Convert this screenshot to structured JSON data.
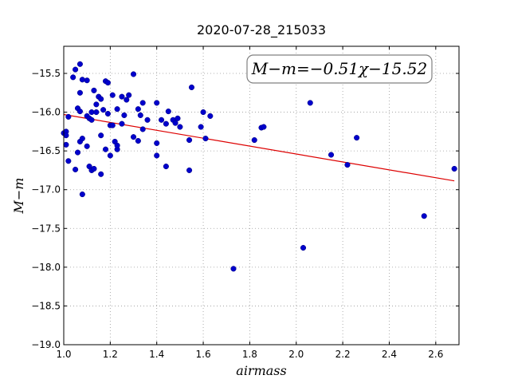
{
  "chart_data": {
    "type": "scatter",
    "title": "2020-07-28_215033",
    "xlabel": "airmass",
    "ylabel": "M−m",
    "annotation": "M−m=−0.51χ−15.52",
    "xlim": [
      1.0,
      2.7
    ],
    "ylim": [
      -19.0,
      -15.15
    ],
    "xticks": [
      1.0,
      1.2,
      1.4,
      1.6,
      1.8,
      2.0,
      2.2,
      2.4,
      2.6
    ],
    "xtick_labels": [
      "1.0",
      "1.2",
      "1.4",
      "1.6",
      "1.8",
      "2.0",
      "2.2",
      "2.4",
      "2.6"
    ],
    "yticks": [
      -15.5,
      -16.0,
      -16.5,
      -17.0,
      -17.5,
      -18.0,
      -18.5,
      -19.0
    ],
    "ytick_labels": [
      "−15.5",
      "−16.0",
      "−16.5",
      "−17.0",
      "−17.5",
      "−18.0",
      "−18.5",
      "−19.0"
    ],
    "grid": true,
    "point_color": "#0000cc",
    "fit_line": {
      "slope": -0.51,
      "intercept": -15.52,
      "x_range": [
        1.0,
        2.68
      ],
      "color": "#dd0000"
    },
    "points": [
      [
        1.0,
        -16.27
      ],
      [
        1.01,
        -16.25
      ],
      [
        1.01,
        -16.3
      ],
      [
        1.01,
        -16.42
      ],
      [
        1.02,
        -16.06
      ],
      [
        1.02,
        -16.63
      ],
      [
        1.04,
        -15.55
      ],
      [
        1.05,
        -15.45
      ],
      [
        1.05,
        -16.74
      ],
      [
        1.06,
        -16.52
      ],
      [
        1.06,
        -15.95
      ],
      [
        1.07,
        -15.75
      ],
      [
        1.07,
        -16.38
      ],
      [
        1.07,
        -15.99
      ],
      [
        1.07,
        -15.38
      ],
      [
        1.08,
        -15.58
      ],
      [
        1.08,
        -16.34
      ],
      [
        1.08,
        -17.06
      ],
      [
        1.1,
        -15.59
      ],
      [
        1.1,
        -16.44
      ],
      [
        1.1,
        -16.05
      ],
      [
        1.11,
        -16.7
      ],
      [
        1.11,
        -16.08
      ],
      [
        1.12,
        -16.1
      ],
      [
        1.12,
        -16.0
      ],
      [
        1.12,
        -16.75
      ],
      [
        1.13,
        -15.72
      ],
      [
        1.13,
        -16.73
      ],
      [
        1.14,
        -16.0
      ],
      [
        1.14,
        -15.9
      ],
      [
        1.15,
        -15.8
      ],
      [
        1.16,
        -15.83
      ],
      [
        1.16,
        -16.3
      ],
      [
        1.16,
        -16.8
      ],
      [
        1.17,
        -15.97
      ],
      [
        1.18,
        -15.6
      ],
      [
        1.18,
        -16.48
      ],
      [
        1.19,
        -16.02
      ],
      [
        1.19,
        -15.62
      ],
      [
        1.2,
        -16.17
      ],
      [
        1.2,
        -16.56
      ],
      [
        1.21,
        -15.78
      ],
      [
        1.21,
        -16.17
      ],
      [
        1.22,
        -16.38
      ],
      [
        1.23,
        -15.96
      ],
      [
        1.23,
        -16.48
      ],
      [
        1.23,
        -16.43
      ],
      [
        1.25,
        -15.8
      ],
      [
        1.25,
        -16.15
      ],
      [
        1.26,
        -16.04
      ],
      [
        1.27,
        -15.84
      ],
      [
        1.28,
        -15.78
      ],
      [
        1.3,
        -16.32
      ],
      [
        1.3,
        -15.51
      ],
      [
        1.32,
        -15.96
      ],
      [
        1.32,
        -16.37
      ],
      [
        1.33,
        -16.04
      ],
      [
        1.34,
        -15.88
      ],
      [
        1.34,
        -16.22
      ],
      [
        1.36,
        -16.1
      ],
      [
        1.4,
        -15.88
      ],
      [
        1.4,
        -16.56
      ],
      [
        1.4,
        -16.4
      ],
      [
        1.42,
        -16.1
      ],
      [
        1.44,
        -16.7
      ],
      [
        1.44,
        -16.15
      ],
      [
        1.45,
        -15.99
      ],
      [
        1.47,
        -16.1
      ],
      [
        1.48,
        -16.14
      ],
      [
        1.49,
        -16.08
      ],
      [
        1.5,
        -16.19
      ],
      [
        1.54,
        -16.36
      ],
      [
        1.54,
        -16.75
      ],
      [
        1.55,
        -15.68
      ],
      [
        1.59,
        -16.19
      ],
      [
        1.6,
        -16.0
      ],
      [
        1.61,
        -16.34
      ],
      [
        1.63,
        -16.05
      ],
      [
        1.73,
        -18.02
      ],
      [
        1.82,
        -16.36
      ],
      [
        1.85,
        -16.2
      ],
      [
        1.86,
        -16.19
      ],
      [
        2.03,
        -17.75
      ],
      [
        2.06,
        -15.88
      ],
      [
        2.15,
        -16.55
      ],
      [
        2.22,
        -16.68
      ],
      [
        2.26,
        -16.33
      ],
      [
        2.55,
        -17.34
      ],
      [
        2.68,
        -16.73
      ]
    ]
  }
}
